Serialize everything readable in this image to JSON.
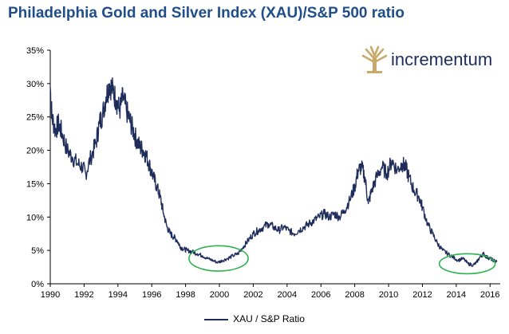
{
  "chart_data": {
    "type": "line",
    "title": "Philadelphia Gold and Silver Index (XAU)/S&P 500 ratio",
    "xlabel": "",
    "ylabel": "",
    "xlim": [
      1990,
      2016.6
    ],
    "ylim": [
      0,
      35
    ],
    "y_unit": "%",
    "grid": false,
    "legend_placement": "bottom-center",
    "x_ticks": [
      "1990",
      "1992",
      "1994",
      "1996",
      "1998",
      "2000",
      "2002",
      "2004",
      "2006",
      "2008",
      "2010",
      "2012",
      "2014",
      "2016"
    ],
    "y_ticks": [
      "0%",
      "5%",
      "10%",
      "15%",
      "20%",
      "25%",
      "30%",
      "35%"
    ],
    "series": [
      {
        "name": "XAU / S&P Ratio",
        "color": "#1f2d5a",
        "points": [
          [
            1990.0,
            29.5
          ],
          [
            1990.1,
            25.0
          ],
          [
            1990.3,
            23.0
          ],
          [
            1990.5,
            24.0
          ],
          [
            1990.7,
            22.5
          ],
          [
            1991.0,
            20.0
          ],
          [
            1991.3,
            19.0
          ],
          [
            1991.6,
            18.0
          ],
          [
            1991.9,
            17.5
          ],
          [
            1992.1,
            16.5
          ],
          [
            1992.4,
            19.0
          ],
          [
            1992.7,
            21.0
          ],
          [
            1992.9,
            24.0
          ],
          [
            1993.1,
            25.5
          ],
          [
            1993.3,
            28.0
          ],
          [
            1993.5,
            30.0
          ],
          [
            1993.7,
            29.0
          ],
          [
            1993.9,
            27.5
          ],
          [
            1994.1,
            26.0
          ],
          [
            1994.3,
            28.0
          ],
          [
            1994.5,
            26.0
          ],
          [
            1994.7,
            24.5
          ],
          [
            1994.9,
            23.0
          ],
          [
            1995.1,
            21.5
          ],
          [
            1995.3,
            20.5
          ],
          [
            1995.5,
            20.0
          ],
          [
            1995.7,
            19.0
          ],
          [
            1995.9,
            17.5
          ],
          [
            1996.1,
            16.0
          ],
          [
            1996.3,
            14.5
          ],
          [
            1996.5,
            13.0
          ],
          [
            1996.7,
            10.5
          ],
          [
            1996.9,
            8.5
          ],
          [
            1997.1,
            7.5
          ],
          [
            1997.3,
            7.0
          ],
          [
            1997.5,
            6.5
          ],
          [
            1997.7,
            5.5
          ],
          [
            1997.9,
            5.2
          ],
          [
            1998.1,
            5.0
          ],
          [
            1998.4,
            4.8
          ],
          [
            1998.7,
            4.5
          ],
          [
            1999.0,
            4.2
          ],
          [
            1999.3,
            3.8
          ],
          [
            1999.6,
            3.5
          ],
          [
            1999.9,
            3.2
          ],
          [
            2000.2,
            3.5
          ],
          [
            2000.5,
            3.8
          ],
          [
            2000.8,
            4.2
          ],
          [
            2001.1,
            4.5
          ],
          [
            2001.4,
            5.5
          ],
          [
            2001.7,
            6.5
          ],
          [
            2002.0,
            7.5
          ],
          [
            2002.3,
            8.0
          ],
          [
            2002.6,
            8.5
          ],
          [
            2002.9,
            9.0
          ],
          [
            2003.2,
            8.5
          ],
          [
            2003.5,
            8.0
          ],
          [
            2003.8,
            8.5
          ],
          [
            2004.1,
            8.0
          ],
          [
            2004.4,
            7.5
          ],
          [
            2004.7,
            8.0
          ],
          [
            2005.0,
            8.5
          ],
          [
            2005.3,
            9.0
          ],
          [
            2005.6,
            9.5
          ],
          [
            2005.9,
            10.0
          ],
          [
            2006.2,
            10.5
          ],
          [
            2006.5,
            10.0
          ],
          [
            2006.8,
            10.5
          ],
          [
            2007.1,
            10.0
          ],
          [
            2007.4,
            11.0
          ],
          [
            2007.7,
            12.5
          ],
          [
            2008.0,
            14.5
          ],
          [
            2008.2,
            17.0
          ],
          [
            2008.4,
            17.5
          ],
          [
            2008.6,
            16.0
          ],
          [
            2008.8,
            12.0
          ],
          [
            2009.0,
            14.0
          ],
          [
            2009.3,
            16.0
          ],
          [
            2009.6,
            17.5
          ],
          [
            2009.9,
            16.5
          ],
          [
            2010.2,
            18.5
          ],
          [
            2010.5,
            17.0
          ],
          [
            2010.8,
            18.0
          ],
          [
            2011.0,
            17.5
          ],
          [
            2011.2,
            16.0
          ],
          [
            2011.5,
            14.0
          ],
          [
            2011.8,
            13.0
          ],
          [
            2012.0,
            11.5
          ],
          [
            2012.3,
            9.0
          ],
          [
            2012.6,
            7.5
          ],
          [
            2012.9,
            6.0
          ],
          [
            2013.2,
            5.0
          ],
          [
            2013.5,
            4.5
          ],
          [
            2013.8,
            4.0
          ],
          [
            2014.1,
            3.5
          ],
          [
            2014.4,
            3.8
          ],
          [
            2014.7,
            3.0
          ],
          [
            2015.0,
            2.8
          ],
          [
            2015.2,
            3.2
          ],
          [
            2015.4,
            4.0
          ],
          [
            2015.6,
            4.5
          ],
          [
            2015.8,
            4.0
          ],
          [
            2016.0,
            3.8
          ],
          [
            2016.2,
            3.5
          ],
          [
            2016.4,
            3.3
          ]
        ]
      }
    ],
    "annotations": [
      {
        "type": "ellipse",
        "color": "#2eb24f",
        "x_range": [
          1998.2,
          2001.7
        ],
        "y_range": [
          1.9,
          5.7
        ]
      },
      {
        "type": "ellipse",
        "color": "#2eb24f",
        "x_range": [
          2013.0,
          2016.3
        ],
        "y_range": [
          1.5,
          4.5
        ]
      }
    ]
  },
  "logo": {
    "text": "incrementum",
    "tree_icon": "tree-icon",
    "tree_color": "#c8a96a",
    "text_color": "#1f2d5a"
  }
}
